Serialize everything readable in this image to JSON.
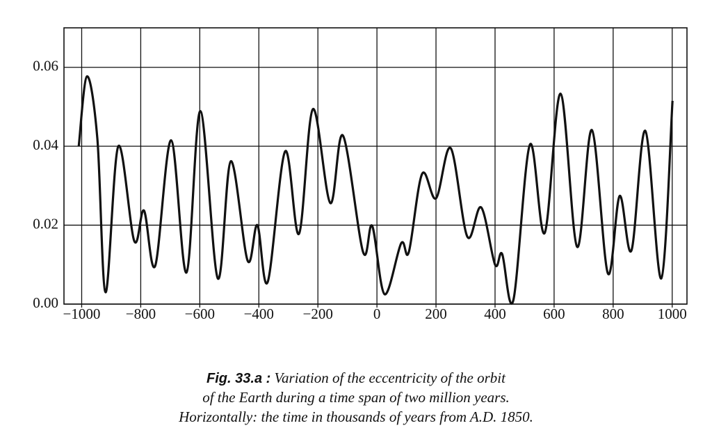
{
  "chart_data": {
    "type": "line",
    "figure_label": "Fig. 33.a :",
    "caption": [
      "Variation of the eccentricity of the orbit",
      "of the Earth during a time span of two million years.",
      "Horizontally: the time in thousands of years from A.D. 1850."
    ],
    "xlim": [
      -1060,
      1050
    ],
    "ylim": [
      0,
      0.07
    ],
    "xticks": [
      {
        "value": -1000,
        "label": "−1000"
      },
      {
        "value": -800,
        "label": "−800"
      },
      {
        "value": -600,
        "label": "−600"
      },
      {
        "value": -400,
        "label": "−400"
      },
      {
        "value": -200,
        "label": "−200"
      },
      0,
      200,
      400,
      600,
      800,
      1000
    ],
    "yticks": [
      {
        "value": 0,
        "label": "0.00"
      },
      0.02,
      0.04,
      0.06
    ],
    "grid": true,
    "color": "#111111",
    "x": [
      -1010,
      -982,
      -947,
      -919,
      -876,
      -822,
      -789,
      -751,
      -697,
      -645,
      -598,
      -539,
      -495,
      -438,
      -405,
      -370,
      -311,
      -264,
      -217,
      -158,
      -115,
      -47,
      -16,
      26,
      82,
      108,
      153,
      200,
      250,
      306,
      353,
      400,
      424,
      462,
      518,
      568,
      622,
      678,
      728,
      782,
      822,
      862,
      909,
      963,
      1001
    ],
    "values": [
      0.04,
      0.0577,
      0.042,
      0.003,
      0.04,
      0.016,
      0.0237,
      0.0097,
      0.0415,
      0.008,
      0.0489,
      0.0065,
      0.0362,
      0.011,
      0.02,
      0.0056,
      0.0387,
      0.0178,
      0.0494,
      0.0256,
      0.0427,
      0.0132,
      0.0198,
      0.0025,
      0.0154,
      0.0132,
      0.033,
      0.0268,
      0.0395,
      0.0171,
      0.0245,
      0.01,
      0.0127,
      0.001,
      0.0404,
      0.018,
      0.0533,
      0.0145,
      0.0441,
      0.0078,
      0.0274,
      0.0136,
      0.0439,
      0.0065,
      0.0515
    ]
  }
}
